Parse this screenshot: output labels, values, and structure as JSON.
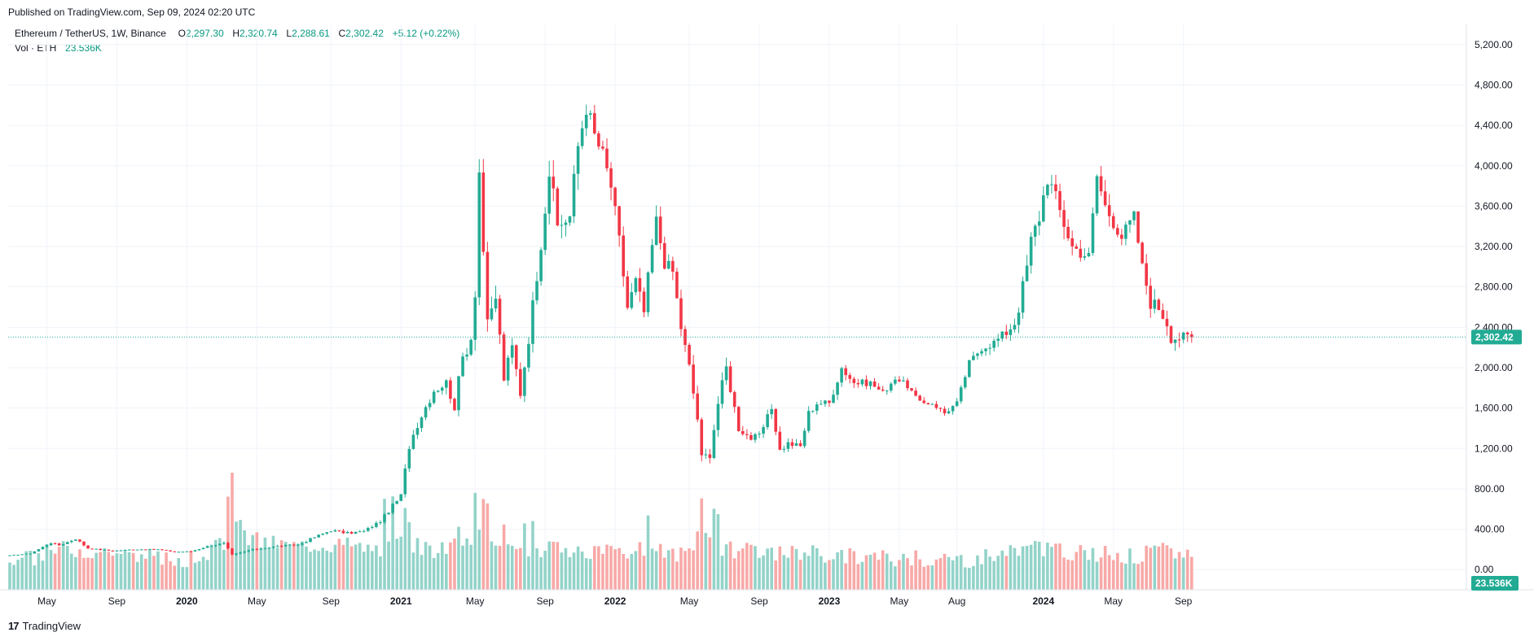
{
  "header": {
    "published": "Published on TradingView.com, Sep 09, 2024 02:20 UTC"
  },
  "legend": {
    "symbol": "Ethereum / TetherUS, 1W, Binance",
    "o_label": "O",
    "o_value": "2,297.30",
    "h_label": "H",
    "h_value": "2,320.74",
    "l_label": "L",
    "l_value": "2,288.61",
    "c_label": "C",
    "c_value": "2,302.42",
    "change": "+5.12 (+0.22%)",
    "vol_label": "Vol · ETH",
    "vol_value": "23.536K"
  },
  "brand": {
    "icon": "17",
    "name": "TradingView"
  },
  "colors": {
    "up": "#22ab94",
    "down": "#f23645",
    "vol_up": "#93d3c9",
    "vol_down": "#f7a9a7",
    "grid": "#f0f3fa",
    "price_line": "#22ab94"
  },
  "chart_data": {
    "type": "candlestick",
    "ylim": [
      -200,
      5400
    ],
    "y_ticks": [
      "5,200.00",
      "4,800.00",
      "4,400.00",
      "4,000.00",
      "3,600.00",
      "3,200.00",
      "2,800.00",
      "2,400.00",
      "2,000.00",
      "1,600.00",
      "1,200.00",
      "800.00",
      "400.00",
      "0.00"
    ],
    "y_tick_values": [
      5200,
      4800,
      4400,
      4000,
      3600,
      3200,
      2800,
      2400,
      2000,
      1600,
      1200,
      800,
      400,
      0
    ],
    "x_ticks": [
      {
        "label": "May",
        "week": 9,
        "bold": false
      },
      {
        "label": "Sep",
        "week": 26,
        "bold": false
      },
      {
        "label": "2020",
        "week": 43,
        "bold": true
      },
      {
        "label": "May",
        "week": 60,
        "bold": false
      },
      {
        "label": "Sep",
        "week": 78,
        "bold": false
      },
      {
        "label": "2021",
        "week": 95,
        "bold": true
      },
      {
        "label": "May",
        "week": 113,
        "bold": false
      },
      {
        "label": "Sep",
        "week": 130,
        "bold": false
      },
      {
        "label": "2022",
        "week": 147,
        "bold": true
      },
      {
        "label": "May",
        "week": 165,
        "bold": false
      },
      {
        "label": "Sep",
        "week": 182,
        "bold": false
      },
      {
        "label": "2023",
        "week": 199,
        "bold": true
      },
      {
        "label": "May",
        "week": 216,
        "bold": false
      },
      {
        "label": "Aug",
        "week": 230,
        "bold": false
      },
      {
        "label": "2024",
        "week": 251,
        "bold": true
      },
      {
        "label": "May",
        "week": 268,
        "bold": false
      },
      {
        "label": "Sep",
        "week": 285,
        "bold": false
      }
    ],
    "last_price": 2302.42,
    "last_price_label": "2,302.42",
    "last_volume_label": "23.536K",
    "anchors": [
      [
        0,
        140,
        0.04
      ],
      [
        5,
        160,
        0.05
      ],
      [
        10,
        265,
        0.09
      ],
      [
        12,
        240,
        0.1
      ],
      [
        16,
        305,
        0.1
      ],
      [
        19,
        210,
        0.09
      ],
      [
        25,
        185,
        0.09
      ],
      [
        30,
        200,
        0.06
      ],
      [
        36,
        200,
        0.05
      ],
      [
        40,
        175,
        0.05
      ],
      [
        44,
        180,
        0.05
      ],
      [
        48,
        230,
        0.08
      ],
      [
        52,
        260,
        0.12
      ],
      [
        54,
        140,
        0.25
      ],
      [
        58,
        190,
        0.15
      ],
      [
        62,
        215,
        0.13
      ],
      [
        66,
        235,
        0.12
      ],
      [
        70,
        245,
        0.11
      ],
      [
        74,
        320,
        0.12
      ],
      [
        78,
        390,
        0.12
      ],
      [
        82,
        360,
        0.12
      ],
      [
        86,
        380,
        0.1
      ],
      [
        90,
        480,
        0.1
      ],
      [
        95,
        730,
        0.13
      ],
      [
        97,
        1230,
        0.12
      ],
      [
        99,
        1450,
        0.11
      ],
      [
        103,
        1780,
        0.09
      ],
      [
        106,
        1850,
        0.09
      ],
      [
        108,
        1620,
        0.11
      ],
      [
        110,
        2100,
        0.11
      ],
      [
        112,
        2300,
        0.12
      ],
      [
        113,
        2800,
        0.14
      ],
      [
        114,
        3950,
        0.1
      ],
      [
        116,
        2400,
        0.12
      ],
      [
        118,
        2700,
        0.11
      ],
      [
        120,
        1900,
        0.11
      ],
      [
        122,
        2200,
        0.1
      ],
      [
        124,
        1750,
        0.1
      ],
      [
        126,
        2300,
        0.1
      ],
      [
        129,
        3250,
        0.09
      ],
      [
        131,
        3950,
        0.1
      ],
      [
        133,
        3400,
        0.09
      ],
      [
        136,
        3500,
        0.08
      ],
      [
        138,
        4200,
        0.09
      ],
      [
        140,
        4600,
        0.08
      ],
      [
        142,
        4300,
        0.07
      ],
      [
        144,
        4100,
        0.08
      ],
      [
        146,
        3800,
        0.08
      ],
      [
        148,
        3250,
        0.09
      ],
      [
        150,
        2600,
        0.09
      ],
      [
        152,
        2850,
        0.09
      ],
      [
        154,
        2550,
        0.09
      ],
      [
        156,
        3200,
        0.09
      ],
      [
        157,
        3450,
        0.08
      ],
      [
        159,
        3050,
        0.08
      ],
      [
        161,
        2950,
        0.07
      ],
      [
        163,
        2400,
        0.08
      ],
      [
        165,
        2000,
        0.11
      ],
      [
        167,
        1500,
        0.14
      ],
      [
        168,
        1100,
        0.15
      ],
      [
        170,
        1150,
        0.13
      ],
      [
        172,
        1650,
        0.11
      ],
      [
        174,
        2000,
        0.1
      ],
      [
        177,
        1400,
        0.09
      ],
      [
        180,
        1300,
        0.08
      ],
      [
        182,
        1320,
        0.08
      ],
      [
        185,
        1600,
        0.07
      ],
      [
        187,
        1180,
        0.09
      ],
      [
        189,
        1250,
        0.08
      ],
      [
        192,
        1220,
        0.08
      ],
      [
        194,
        1550,
        0.08
      ],
      [
        196,
        1650,
        0.07
      ],
      [
        199,
        1650,
        0.07
      ],
      [
        202,
        2000,
        0.07
      ],
      [
        205,
        1850,
        0.06
      ],
      [
        209,
        1850,
        0.06
      ],
      [
        212,
        1750,
        0.06
      ],
      [
        215,
        1900,
        0.05
      ],
      [
        218,
        1820,
        0.05
      ],
      [
        221,
        1650,
        0.05
      ],
      [
        224,
        1650,
        0.05
      ],
      [
        227,
        1550,
        0.05
      ],
      [
        230,
        1650,
        0.05
      ],
      [
        233,
        2050,
        0.05
      ],
      [
        236,
        2200,
        0.06
      ],
      [
        239,
        2250,
        0.07
      ],
      [
        242,
        2350,
        0.07
      ],
      [
        244,
        2450,
        0.08
      ],
      [
        245,
        2600,
        0.09
      ],
      [
        247,
        3000,
        0.09
      ],
      [
        248,
        3250,
        0.1
      ],
      [
        250,
        3500,
        0.09
      ],
      [
        252,
        3900,
        0.09
      ],
      [
        255,
        3550,
        0.09
      ],
      [
        258,
        3200,
        0.08
      ],
      [
        262,
        3100,
        0.07
      ],
      [
        264,
        3900,
        0.07
      ],
      [
        266,
        3600,
        0.07
      ],
      [
        270,
        3300,
        0.07
      ],
      [
        273,
        3500,
        0.06
      ],
      [
        275,
        3000,
        0.06
      ],
      [
        277,
        2650,
        0.09
      ],
      [
        279,
        2600,
        0.09
      ],
      [
        281,
        2450,
        0.09
      ],
      [
        282,
        2300,
        0.08
      ]
    ]
  }
}
